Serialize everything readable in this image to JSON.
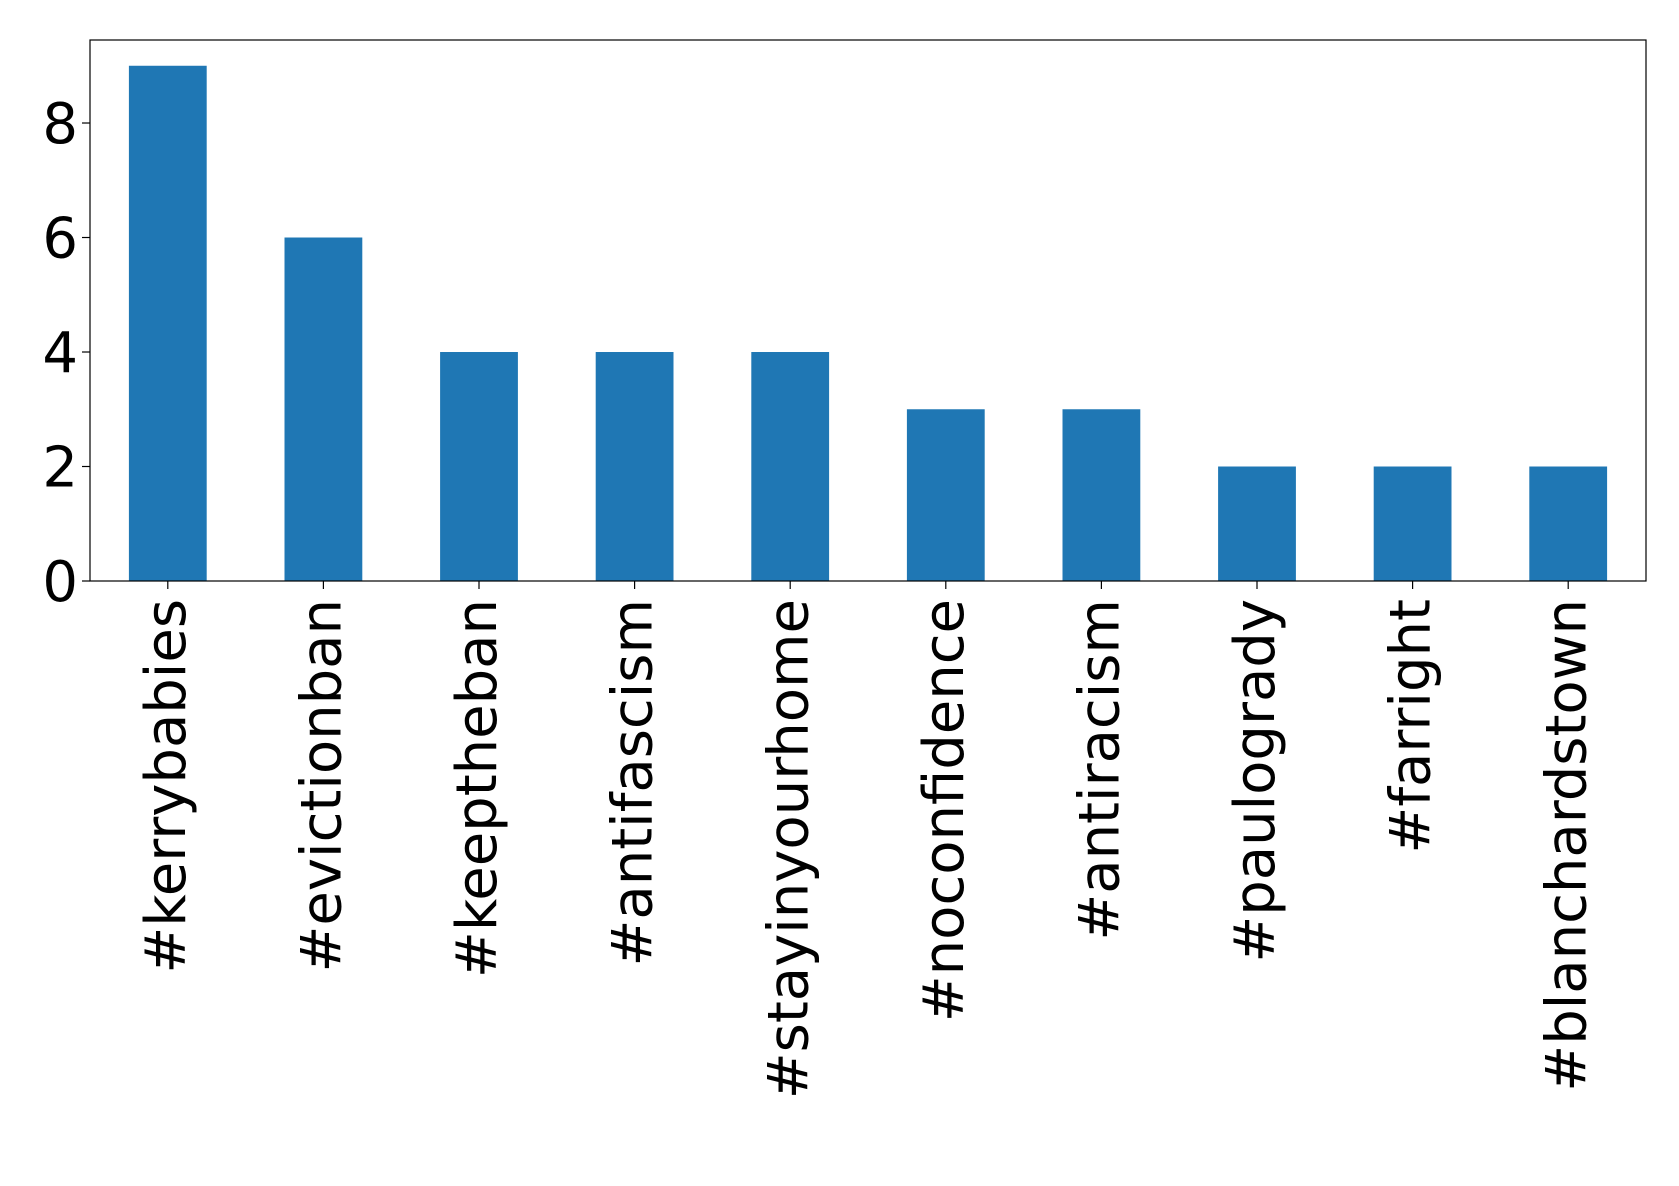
{
  "chart_data": {
    "type": "bar",
    "categories": [
      "#kerrybabies",
      "#evictionban",
      "#keeptheban",
      "#antifascism",
      "#stayinyourhome",
      "#noconfidence",
      "#antiracism",
      "#paulogrady",
      "#farright",
      "#blanchardstown"
    ],
    "values": [
      9,
      6,
      4,
      4,
      4,
      3,
      3,
      2,
      2,
      2
    ],
    "title": "",
    "xlabel": "",
    "ylabel": "",
    "ylim": [
      0,
      9.45
    ],
    "yticks": [
      0,
      2,
      4,
      6,
      8
    ],
    "grid": false,
    "bar_color": "#1f77b4"
  }
}
